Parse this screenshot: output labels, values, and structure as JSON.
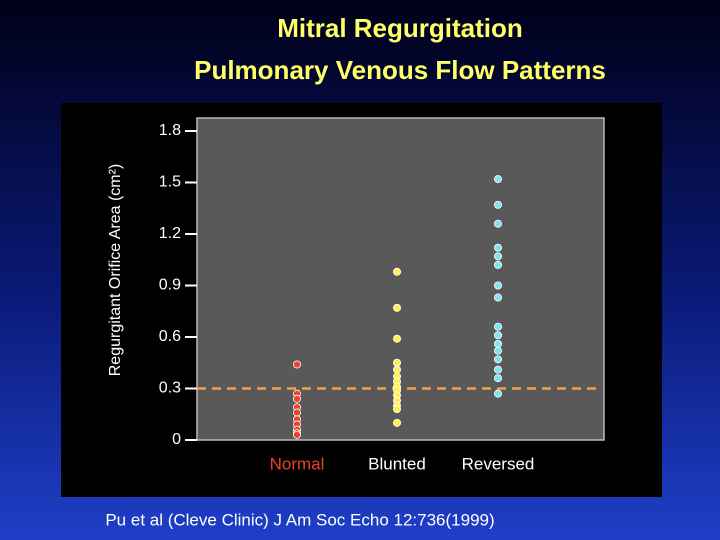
{
  "chart_data": {
    "type": "strip",
    "title": [
      "Mitral Regurgitation",
      "Pulmonary Venous Flow Patterns"
    ],
    "y_label": "Regurgitant Orifice Area  (cm²)",
    "footnote": "Pu et al  (Cleve Clinic)  J Am Soc Echo  12:736(1999)",
    "categories": [
      "Normal",
      "Blunted",
      "Reversed"
    ],
    "category_label_colors": [
      "#e8442a",
      "#ffffff",
      "#ffffff"
    ],
    "series": [
      {
        "color": "#e8442a",
        "values": [
          0.44,
          0.27,
          0.24,
          0.19,
          0.16,
          0.12,
          0.09,
          0.06,
          0.04,
          0.03
        ]
      },
      {
        "color": "#ffee55",
        "values": [
          0.98,
          0.77,
          0.59,
          0.45,
          0.41,
          0.37,
          0.34,
          0.31,
          0.29,
          0.26,
          0.23,
          0.2,
          0.18,
          0.1
        ]
      },
      {
        "color": "#7fe3f0",
        "values": [
          1.52,
          1.37,
          1.26,
          1.12,
          1.07,
          1.02,
          0.9,
          0.83,
          0.66,
          0.61,
          0.56,
          0.52,
          0.47,
          0.41,
          0.36,
          0.27
        ]
      }
    ],
    "reference_line": {
      "value": 0.3,
      "color": "#f0a050"
    },
    "ylim": [
      0,
      1.8
    ],
    "yticks": [
      0,
      0.3,
      0.6,
      0.9,
      1.2,
      1.5,
      1.8
    ]
  }
}
